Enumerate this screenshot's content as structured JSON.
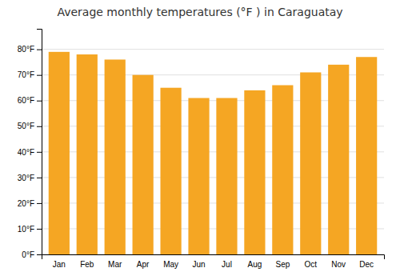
{
  "chart_data": {
    "type": "bar",
    "title": "Average monthly temperatures (°F ) in Caraguatay",
    "categories": [
      "Jan",
      "Feb",
      "Mar",
      "Apr",
      "May",
      "Jun",
      "Jul",
      "Aug",
      "Sep",
      "Oct",
      "Nov",
      "Dec"
    ],
    "values": [
      79,
      78,
      76,
      70,
      65,
      61,
      61,
      64,
      66,
      71,
      74,
      77
    ],
    "color": "#F5A623",
    "ylim": [
      0,
      88
    ],
    "yticks": [
      {
        "value": 0,
        "label": "0°F"
      },
      {
        "value": 10,
        "label": "10°F"
      },
      {
        "value": 20,
        "label": "20°F"
      },
      {
        "value": 30,
        "label": "30°F"
      },
      {
        "value": 40,
        "label": "40°F"
      },
      {
        "value": 50,
        "label": "50°F"
      },
      {
        "value": 60,
        "label": "60°F"
      },
      {
        "value": 70,
        "label": "70°F"
      },
      {
        "value": 80,
        "label": "80°F"
      }
    ],
    "grid": true
  }
}
